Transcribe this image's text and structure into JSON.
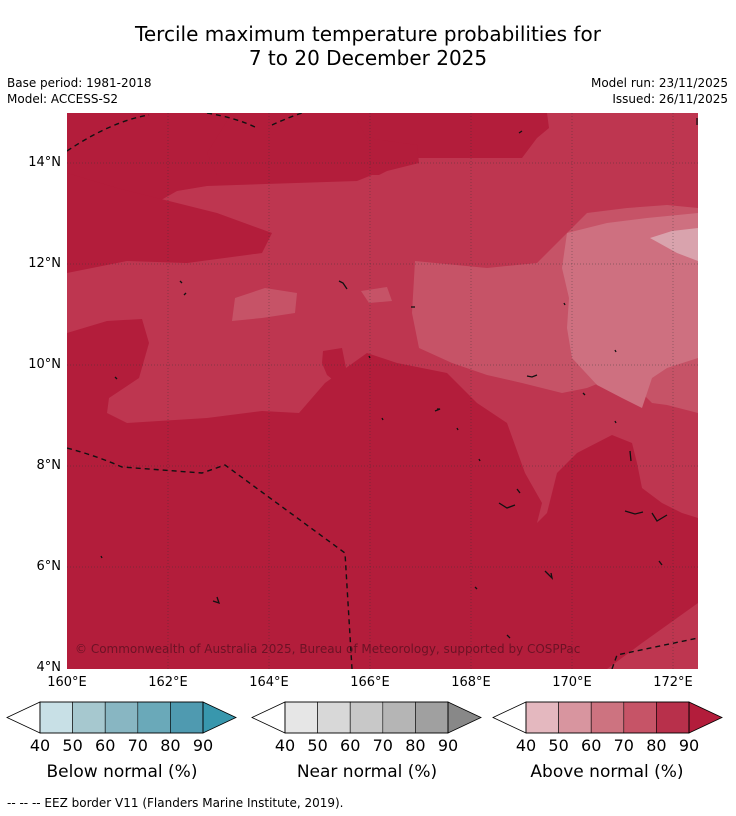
{
  "title": {
    "line1": "Tercile maximum temperature probabilities for",
    "line2": "7 to 20 December 2025"
  },
  "meta": {
    "base_period": "Base period: 1981-2018",
    "model": "Model: ACCESS-S2",
    "model_run": "Model run: 23/11/2025",
    "issued": "Issued: 26/11/2025"
  },
  "map": {
    "lat_labels": [
      "14°N",
      "12°N",
      "10°N",
      "8°N",
      "6°N",
      "4°N"
    ],
    "lon_labels": [
      "160°E",
      "162°E",
      "164°E",
      "166°E",
      "168°E",
      "170°E",
      "172°E"
    ],
    "copyright": "© Commonwealth of Australia 2025, Bureau of Meteorology, supported by COSPPac",
    "colors": {
      "p90": "#b31d3b",
      "p80": "#be3650",
      "p70": "#c65367",
      "p60": "#ce7080",
      "p50": "#d9a3ad"
    }
  },
  "colorbars": [
    {
      "name": "below",
      "title": "Below normal (%)",
      "ticks": [
        "40",
        "50",
        "60",
        "70",
        "80",
        "90"
      ],
      "colors": [
        "#c8e0e6",
        "#a6c8cf",
        "#88b6c2",
        "#6aa9b9",
        "#4f9ab0",
        "#3897ad"
      ]
    },
    {
      "name": "near",
      "title": "Near normal (%)",
      "ticks": [
        "40",
        "50",
        "60",
        "70",
        "80",
        "90"
      ],
      "colors": [
        "#e6e6e6",
        "#d8d8d8",
        "#c8c8c8",
        "#b5b5b5",
        "#a0a0a0",
        "#888888"
      ]
    },
    {
      "name": "above",
      "title": "Above normal (%)",
      "ticks": [
        "40",
        "50",
        "60",
        "70",
        "80",
        "90"
      ],
      "colors": [
        "#e4b8bf",
        "#d8959f",
        "#cd7380",
        "#c65467",
        "#b8304b",
        "#b31d3b"
      ]
    }
  ],
  "footnote": "--  --  -- EEZ border V11 (Flanders Marine Institute, 2019)."
}
